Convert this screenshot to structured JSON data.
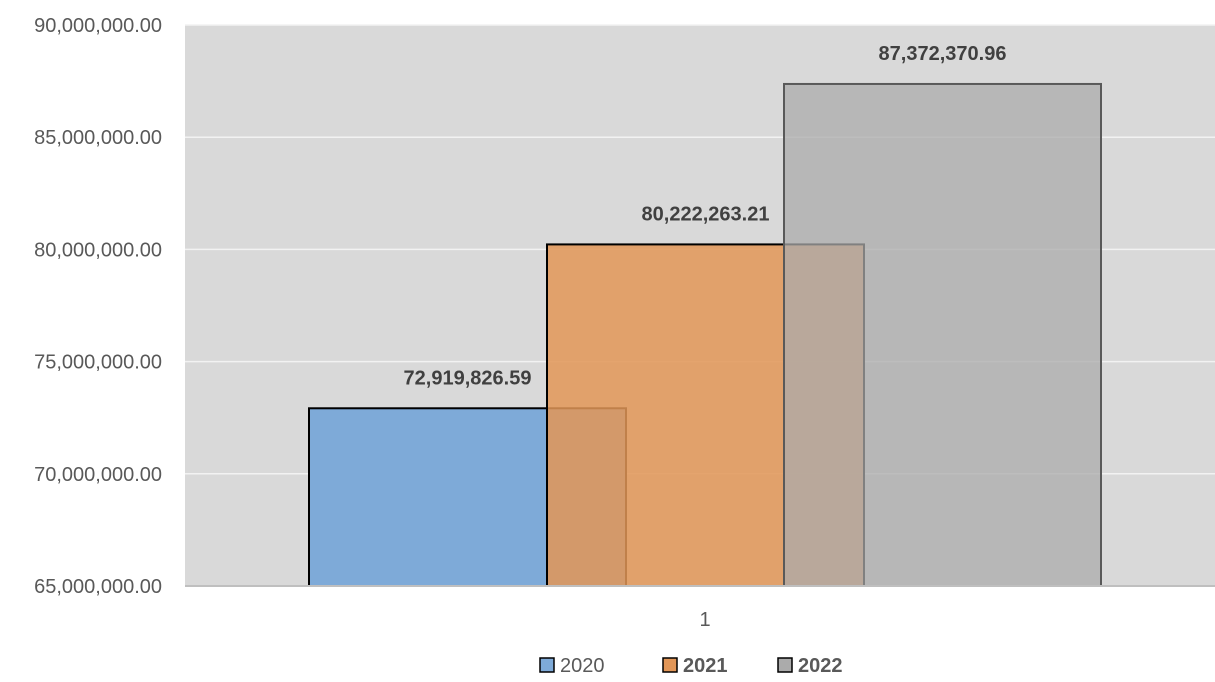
{
  "chart_data": {
    "type": "bar",
    "categories": [
      "1"
    ],
    "series": [
      {
        "name": "2020",
        "values": [
          72919826.59
        ],
        "label": "72,919,826.59",
        "color": "#7eaad8",
        "bold_legend": false
      },
      {
        "name": "2021",
        "values": [
          80222263.21
        ],
        "label": "80,222,263.21",
        "color": "#e29657",
        "bold_legend": true
      },
      {
        "name": "2022",
        "values": [
          87372370.96
        ],
        "label": "87,372,370.96",
        "color": "#ababab",
        "bold_legend": true
      }
    ],
    "ylim": [
      65000000,
      90000000
    ],
    "yticks": [
      65000000,
      70000000,
      75000000,
      80000000,
      85000000,
      90000000
    ],
    "ytick_labels": [
      "65,000,000.00",
      "70,000,000.00",
      "75,000,000.00",
      "80,000,000.00",
      "85,000,000.00",
      "90,000,000.00"
    ],
    "title": "",
    "xlabel": "",
    "ylabel": "",
    "grid": true,
    "legend": "bottom",
    "plot_background": "#d9d9d9",
    "gridline_color": "#f2f2f2"
  }
}
